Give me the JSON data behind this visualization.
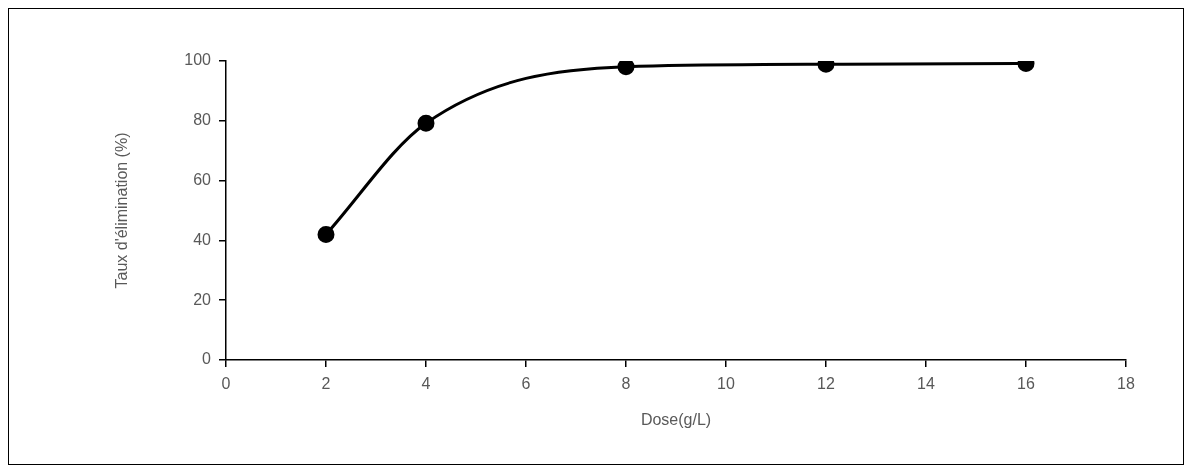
{
  "chart_data": {
    "type": "line",
    "xlabel": "Dose(g/L)",
    "ylabel": "Taux d'élimination (%)",
    "x": [
      2,
      4,
      8,
      12,
      16
    ],
    "series": [
      {
        "color": "#000000",
        "values": [
          42,
          79.2,
          98.1,
          98.9,
          99.2
        ]
      }
    ],
    "xlim": [
      0,
      18
    ],
    "xticks": [
      0,
      2,
      4,
      6,
      8,
      10,
      12,
      14,
      16,
      18
    ],
    "ylim": [
      0,
      100
    ],
    "yticks": [
      0,
      20,
      40,
      60,
      80,
      100
    ],
    "grid": false,
    "legend": false,
    "marker": "circle",
    "line_style": "solid"
  }
}
